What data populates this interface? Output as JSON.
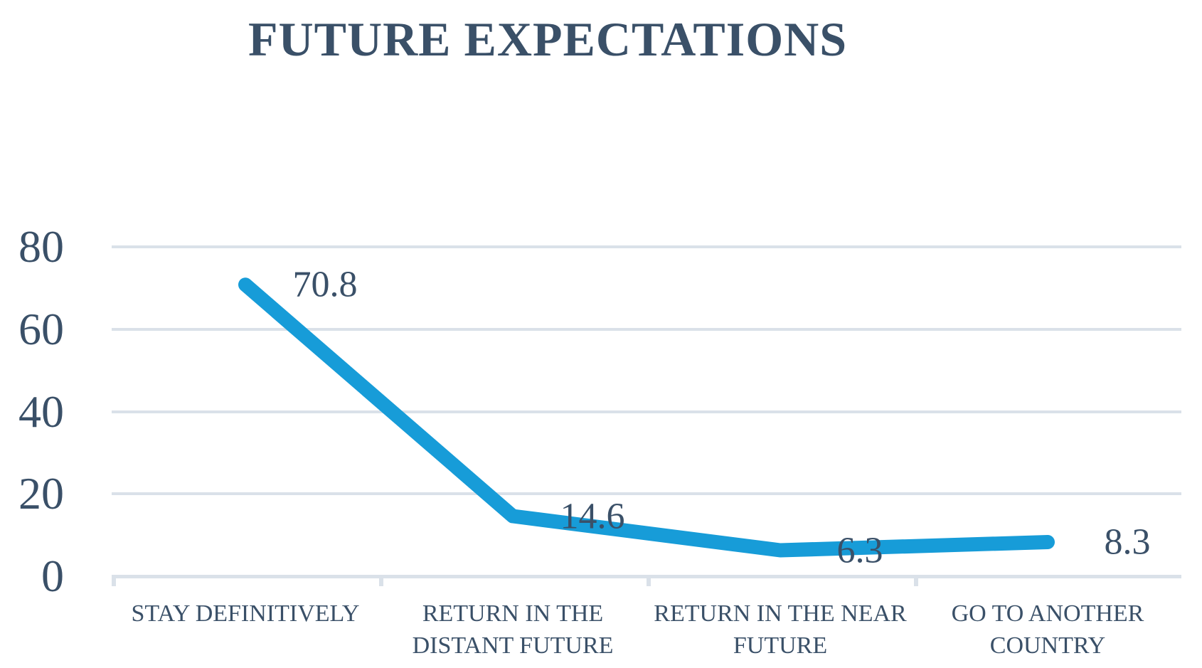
{
  "chart_data": {
    "type": "line",
    "title": "FUTURE EXPECTATIONS",
    "categories": [
      "STAY DEFINITIVELY",
      "RETURN IN THE DISTANT FUTURE",
      "RETURN IN THE NEAR FUTURE",
      "GO TO ANOTHER COUNTRY"
    ],
    "category_display_lines": [
      [
        "STAY DEFINITIVELY"
      ],
      [
        "RETURN IN THE",
        "DISTANT FUTURE"
      ],
      [
        "RETURN IN THE NEAR",
        "FUTURE"
      ],
      [
        "GO TO ANOTHER",
        "COUNTRY"
      ]
    ],
    "series": [
      {
        "name": "Future expectations",
        "values": [
          70.8,
          14.6,
          6.3,
          8.3
        ]
      }
    ],
    "data_labels": [
      "70.8",
      "14.6",
      "6.3",
      "8.3"
    ],
    "xlabel": "",
    "ylabel": "",
    "ylim": [
      0,
      80
    ],
    "yticks": [
      0,
      20,
      40,
      60,
      80
    ],
    "grid": "horizontal",
    "legend": "none",
    "colors": {
      "line": "#179CD8",
      "text": "#3A5068",
      "gridline": "#DAE1E9"
    }
  }
}
